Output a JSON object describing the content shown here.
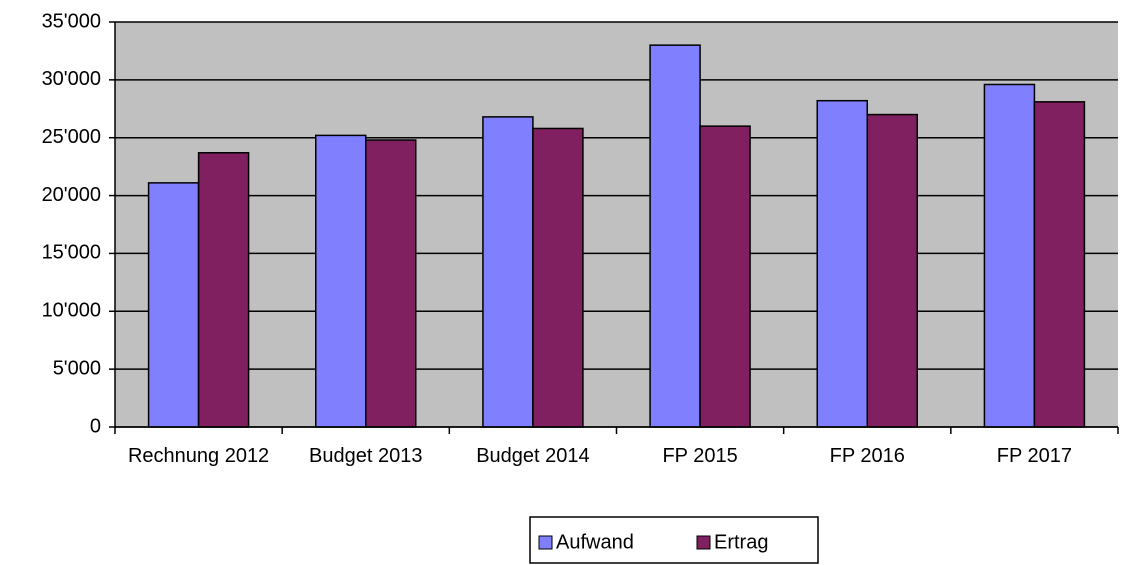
{
  "chart_data": {
    "type": "bar",
    "categories": [
      "Rechnung 2012",
      "Budget 2013",
      "Budget 2014",
      "FP 2015",
      "FP 2016",
      "FP 2017"
    ],
    "series": [
      {
        "name": "Aufwand",
        "color": "#8080ff",
        "values": [
          21100,
          25200,
          26800,
          33000,
          28200,
          29600
        ]
      },
      {
        "name": "Ertrag",
        "color": "#802060",
        "values": [
          23700,
          24800,
          25800,
          26000,
          27000,
          28100
        ]
      }
    ],
    "ylim": [
      0,
      35000
    ],
    "yticks": [
      0,
      {
        "value": 5000,
        "label": "5'000"
      },
      {
        "value": 10000,
        "label": "10'000"
      },
      {
        "value": 15000,
        "label": "15'000"
      },
      {
        "value": 20000,
        "label": "20'000"
      },
      {
        "value": 25000,
        "label": "25'000"
      },
      {
        "value": 30000,
        "label": "30'000"
      },
      {
        "value": 35000,
        "label": "35'000"
      }
    ],
    "grid": true,
    "legend": "bottom"
  }
}
